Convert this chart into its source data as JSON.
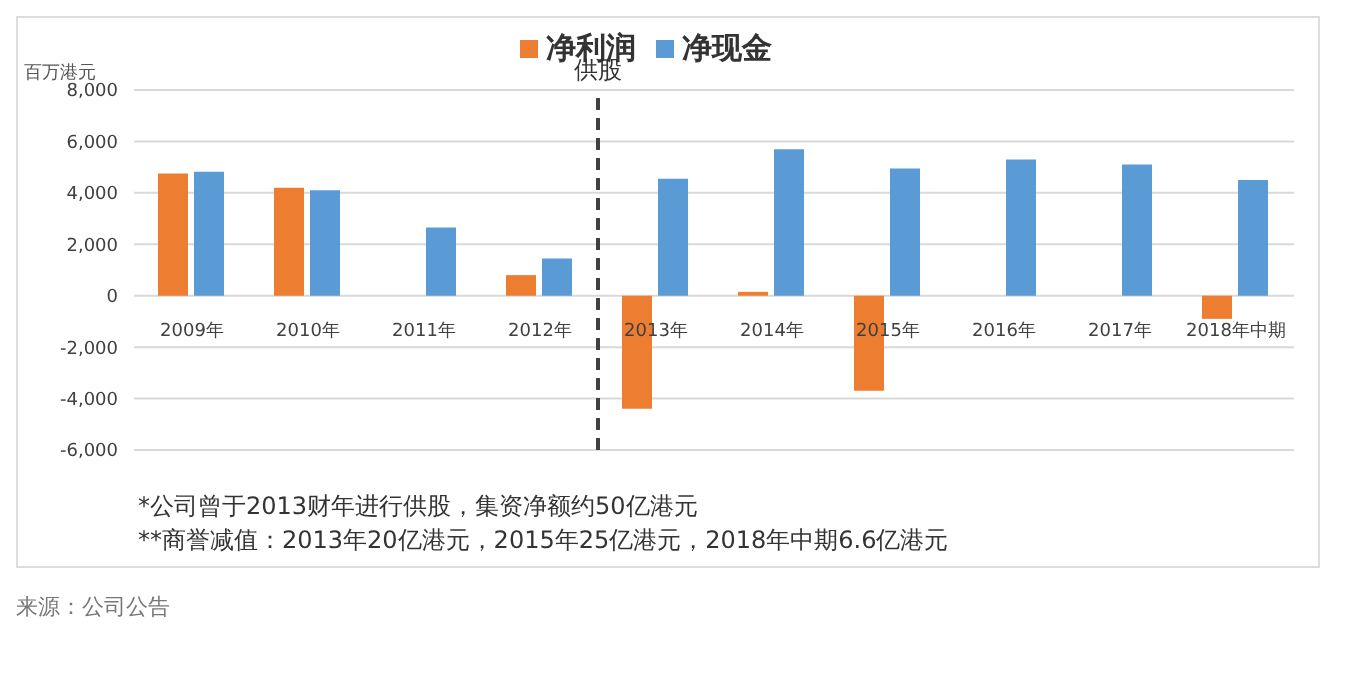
{
  "chart_data": {
    "type": "bar",
    "ylabel": "百万港元",
    "categories": [
      "2009年",
      "2010年",
      "2011年",
      "2012年",
      "2013年",
      "2014年",
      "2015年",
      "2016年",
      "2017年",
      "2018年中期"
    ],
    "series": [
      {
        "name": "净利润",
        "color": "#ed7d31",
        "values": [
          4750,
          4200,
          0,
          800,
          -4400,
          150,
          -3700,
          0,
          0,
          -900
        ]
      },
      {
        "name": "净现金",
        "color": "#5b9bd5",
        "values": [
          4820,
          4100,
          2650,
          1450,
          4550,
          5700,
          4950,
          5300,
          5100,
          4500
        ]
      }
    ],
    "ylim": [
      -6000,
      8000
    ],
    "yticks": [
      {
        "value": -6000,
        "label": "-6,000"
      },
      {
        "value": -4000,
        "label": "-4,000"
      },
      {
        "value": -2000,
        "label": "-2,000"
      },
      0,
      {
        "value": 2000,
        "label": "2,000"
      },
      {
        "value": 4000,
        "label": "4,000"
      },
      {
        "value": 6000,
        "label": "6,000"
      },
      {
        "value": 8000,
        "label": "8,000"
      }
    ],
    "grid": "y",
    "legend": "top",
    "ref_lines": [
      {
        "axis": "x",
        "value": "2013年",
        "label": "供股",
        "line_style": "dashed",
        "color": "#404040"
      }
    ],
    "annotations": [
      "*公司曾于2013财年进行供股，集资净额约50亿港元",
      "**商誉减值：2013年20亿港元，2015年25亿港元，2018年中期6.6亿港元",
      "来源：公司公告"
    ]
  }
}
